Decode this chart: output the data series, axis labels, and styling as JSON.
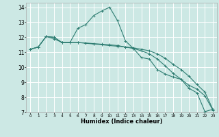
{
  "xlabel": "Humidex (Indice chaleur)",
  "ylabel": "",
  "bg_color": "#cce8e4",
  "grid_color": "#ffffff",
  "line_color": "#2e7d72",
  "xlim": [
    -0.5,
    23.5
  ],
  "ylim": [
    7,
    14.3
  ],
  "xticks": [
    0,
    1,
    2,
    3,
    4,
    5,
    6,
    7,
    8,
    9,
    10,
    11,
    12,
    13,
    14,
    15,
    16,
    17,
    18,
    19,
    20,
    21,
    22,
    23
  ],
  "yticks": [
    7,
    8,
    9,
    10,
    11,
    12,
    13,
    14
  ],
  "line1_x": [
    0,
    1,
    2,
    3,
    4,
    5,
    6,
    7,
    8,
    9,
    10,
    11,
    12,
    13,
    14,
    15,
    16,
    17,
    18,
    19,
    20,
    21,
    22,
    23
  ],
  "line1_y": [
    11.2,
    11.35,
    12.05,
    12.0,
    11.65,
    11.65,
    12.6,
    12.85,
    13.45,
    13.75,
    14.0,
    13.1,
    11.75,
    11.25,
    10.65,
    10.55,
    9.85,
    9.55,
    9.35,
    9.2,
    8.6,
    8.3,
    7.05,
    7.2
  ],
  "line2_x": [
    0,
    1,
    2,
    3,
    4,
    5,
    6,
    7,
    8,
    9,
    10,
    11,
    12,
    13,
    14,
    15,
    16,
    17,
    18,
    19,
    20,
    21,
    22,
    23
  ],
  "line2_y": [
    11.2,
    11.35,
    12.05,
    11.9,
    11.65,
    11.65,
    11.65,
    11.6,
    11.55,
    11.5,
    11.45,
    11.4,
    11.35,
    11.3,
    11.2,
    11.1,
    10.9,
    10.6,
    10.2,
    9.85,
    9.4,
    8.85,
    8.35,
    7.2
  ],
  "line3_x": [
    0,
    1,
    2,
    3,
    4,
    5,
    6,
    7,
    8,
    9,
    10,
    11,
    12,
    13,
    14,
    15,
    16,
    17,
    18,
    19,
    20,
    21,
    22,
    23
  ],
  "line3_y": [
    11.2,
    11.35,
    12.05,
    12.0,
    11.65,
    11.65,
    11.65,
    11.62,
    11.58,
    11.54,
    11.5,
    11.45,
    11.35,
    11.25,
    11.1,
    10.9,
    10.55,
    10.1,
    9.6,
    9.2,
    8.8,
    8.55,
    8.1,
    7.15
  ]
}
